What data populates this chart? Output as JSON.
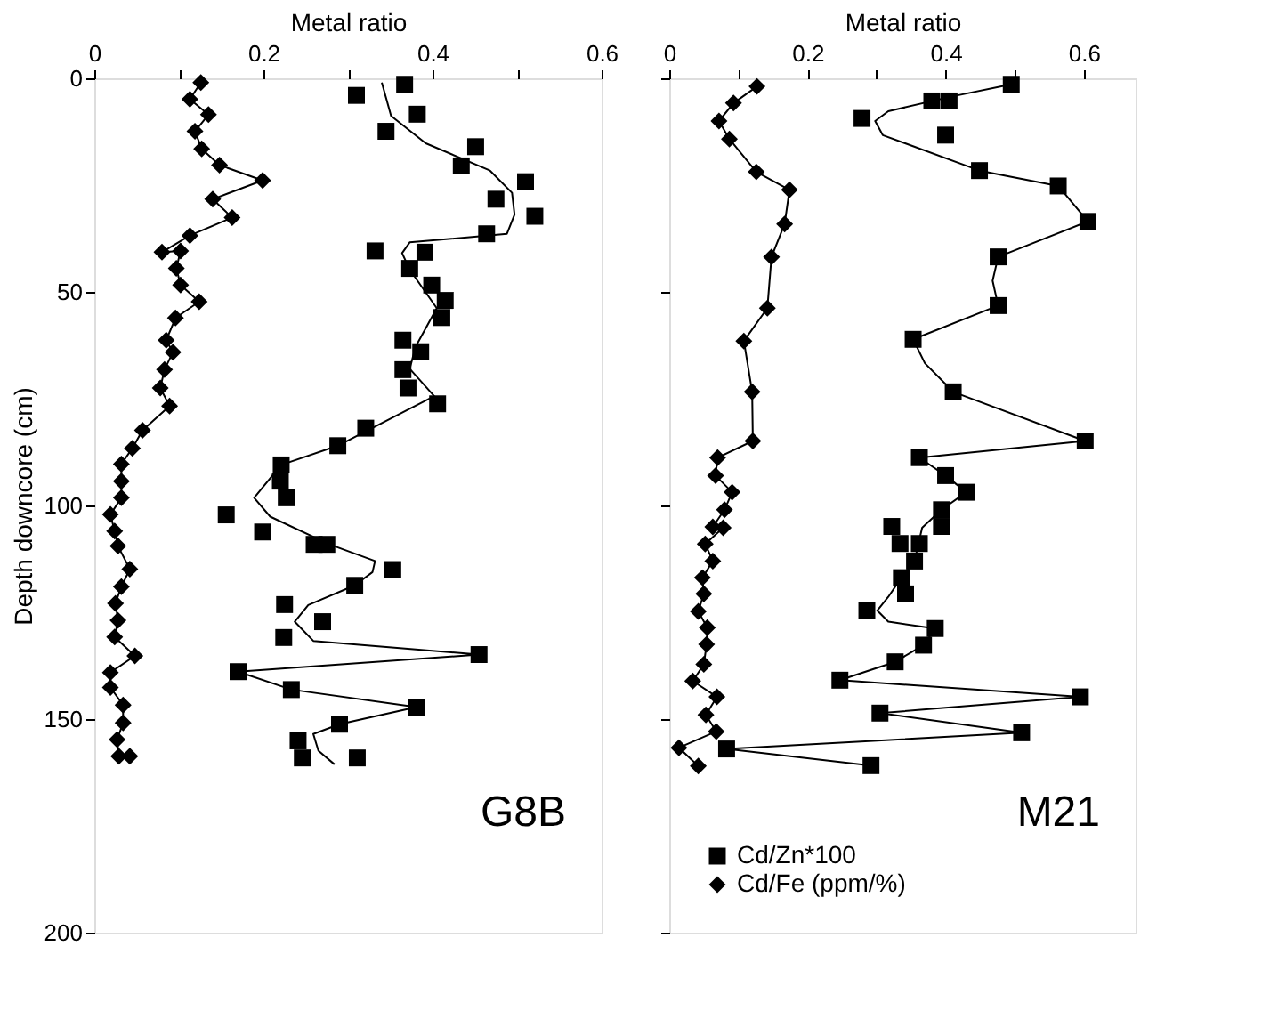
{
  "chart_data": [
    {
      "type": "scatter",
      "xlabel": "Metal ratio",
      "ylabel": "Depth downcore (cm)",
      "xlim": [
        0,
        0.6
      ],
      "xticks": [
        0,
        {
          "value": 0.1,
          "label": null
        },
        0.2,
        {
          "value": 0.3,
          "label": null
        },
        0.4,
        {
          "value": 0.5,
          "label": null
        },
        0.6
      ],
      "ylim": [
        200,
        0
      ],
      "yticks": [
        0,
        50,
        100,
        150,
        200
      ],
      "orientation": "horizontal",
      "grid": false,
      "legend": false,
      "annotations": [
        "G8B"
      ],
      "series": [
        {
          "color": "#000000",
          "type": "scatter",
          "marker": "square",
          "values": [
            0.367,
            0.31,
            0.382,
            0.345,
            0.451,
            0.434,
            0.51,
            0.475,
            0.521,
            0.464,
            0.332,
            0.391,
            0.373,
            0.399,
            0.415,
            0.411,
            0.365,
            0.386,
            0.365,
            0.371,
            0.406,
            0.321,
            0.288,
            0.221,
            0.22,
            0.227,
            0.156,
            0.199,
            0.26,
            0.275,
            0.353,
            0.308,
            0.225,
            0.27,
            0.224,
            0.455,
            0.17,
            0.233,
            0.381,
            0.29,
            0.241,
            0.246,
            0.311
          ],
          "x": [
            1.4,
            4,
            8.4,
            12.4,
            16,
            20.5,
            24.2,
            28.3,
            32.3,
            36.4,
            40.4,
            40.7,
            44.5,
            48.4,
            52,
            56,
            61.3,
            64,
            68.2,
            72.5,
            76.2,
            81.9,
            86,
            90.5,
            94.3,
            98.2,
            102.2,
            106.2,
            109.1,
            109.1,
            115,
            118.7,
            123.2,
            127.2,
            130.9,
            134.9,
            138.9,
            143.1,
            147.2,
            151.2,
            155.1,
            159.1,
            159.1
          ]
        },
        {
          "color": "#000000",
          "type": "line",
          "marker": "none",
          "values": [
            0.34,
            0.351,
            0.392,
            0.468,
            0.494,
            0.497,
            0.488,
            0.373,
            0.364,
            0.373,
            0.405,
            0.38,
            0.373,
            0.402,
            0.288,
            0.221,
            0.189,
            0.208,
            0.278,
            0.332,
            0.329,
            0.308,
            0.253,
            0.237,
            0.259,
            0.455,
            0.17,
            0.233,
            0.381,
            0.29,
            0.259,
            0.265,
            0.284
          ],
          "x": [
            1,
            8.8,
            15.2,
            21.6,
            26.8,
            31.9,
            36.4,
            38.4,
            40.9,
            44.8,
            53.8,
            62.8,
            68,
            74.4,
            86,
            90.5,
            98.2,
            102.6,
            109.1,
            113,
            115.6,
            118.7,
            123.3,
            127.2,
            131.7,
            134.9,
            138.9,
            143.1,
            147.2,
            151.2,
            153.5,
            157.4,
            160.6
          ]
        },
        {
          "color": "#000000",
          "type": "line",
          "marker": "diamond",
          "values": [
            0.126,
            0.113,
            0.135,
            0.119,
            0.127,
            0.148,
            0.199,
            0.14,
            0.163,
            0.113,
            0.08,
            0.102,
            0.097,
            0.102,
            0.124,
            0.096,
            0.085,
            0.093,
            0.083,
            0.078,
            0.089,
            0.057,
            0.045,
            0.032,
            0.032,
            0.032,
            0.019,
            0.024,
            0.028,
            0.042,
            0.032,
            0.025,
            0.028,
            0.024,
            0.048,
            0.019,
            0.019,
            0.034,
            0.034,
            0.027,
            0.029,
            0.042
          ],
          "x": [
            1,
            4.9,
            8.5,
            12.4,
            16.5,
            20.3,
            23.9,
            28.3,
            32.6,
            36.8,
            40.7,
            40.4,
            44.5,
            48.4,
            52.3,
            56.1,
            61.3,
            64.1,
            68.2,
            72.5,
            76.7,
            82.4,
            86.6,
            90.3,
            94.3,
            98.2,
            102.1,
            106,
            109.5,
            114.9,
            119,
            122.9,
            126.9,
            130.8,
            135.2,
            139.1,
            142.6,
            146.7,
            150.9,
            154.8,
            158.7,
            158.7
          ]
        }
      ]
    },
    {
      "type": "scatter",
      "xlabel": "Metal ratio",
      "xlim": [
        0,
        0.675
      ],
      "xticks": [
        0,
        {
          "value": 0.1,
          "label": null
        },
        0.2,
        {
          "value": 0.3,
          "label": null
        },
        0.4,
        {
          "value": 0.5,
          "label": null
        },
        0.6
      ],
      "ylim": [
        200,
        0
      ],
      "yticks": [
        0,
        50,
        100,
        150,
        200
      ],
      "orientation": "horizontal",
      "tick_labels": "x",
      "grid": false,
      "legend": "bottom left",
      "annotations": [
        "M21"
      ],
      "series": [
        {
          "name": "Cd/Zn*100",
          "color": "#000000",
          "type": "scatter",
          "marker": "square",
          "values": [
            0.495,
            0.38,
            0.405,
            0.279,
            0.4,
            0.449,
            0.563,
            0.606,
            0.476,
            0.476,
            0.353,
            0.411,
            0.602,
            0.362,
            0.4,
            0.43,
            0.394,
            0.322,
            0.394,
            0.334,
            0.362,
            0.355,
            0.336,
            0.342,
            0.286,
            0.385,
            0.368,
            0.327,
            0.247,
            0.595,
            0.305,
            0.51,
            0.083,
            0.292
          ],
          "x": [
            1.4,
            5.3,
            5.3,
            9.4,
            13.3,
            21.6,
            25.2,
            33.5,
            41.8,
            53.2,
            61.1,
            73.4,
            84.9,
            88.8,
            93,
            96.9,
            101,
            104.9,
            104.9,
            108.9,
            108.9,
            113,
            116.9,
            120.7,
            124.6,
            128.8,
            132.7,
            136.6,
            140.9,
            144.8,
            148.6,
            153.2,
            157,
            160.9
          ]
        },
        {
          "color": "#000000",
          "type": "line",
          "marker": "none",
          "values": [
            0.495,
            0.408,
            0.317,
            0.298,
            0.309,
            0.449,
            0.563,
            0.606,
            0.476,
            0.468,
            0.476,
            0.353,
            0.37,
            0.411,
            0.602,
            0.362,
            0.4,
            0.43,
            0.394,
            0.366,
            0.355,
            0.336,
            0.317,
            0.301,
            0.317,
            0.385,
            0.368,
            0.327,
            0.247,
            0.595,
            0.305,
            0.51,
            0.083,
            0.292
          ],
          "x": [
            1.4,
            4.3,
            7.7,
            10,
            13.3,
            21.6,
            25.2,
            33.5,
            41.8,
            47.4,
            53.2,
            61.1,
            66.7,
            73.4,
            84.9,
            88.8,
            93,
            96.9,
            101,
            105.2,
            113,
            116.9,
            121.4,
            124.6,
            127.2,
            128.8,
            132.7,
            136.6,
            140.9,
            144.8,
            148.6,
            153.2,
            157,
            160.9
          ]
        },
        {
          "name": "Cd/Fe (ppm/%)",
          "color": "#000000",
          "type": "line",
          "marker": "diamond",
          "values": [
            0.127,
            0.093,
            0.072,
            0.087,
            0.126,
            0.174,
            0.167,
            0.148,
            0.142,
            0.108,
            0.12,
            0.121,
            0.07,
            0.067,
            0.091,
            0.08,
            0.063,
            0.078,
            0.052,
            0.063,
            0.048,
            0.05,
            0.042,
            0.055,
            0.054,
            0.05,
            0.034,
            0.069,
            0.053,
            0.068,
            0.014,
            0.042
          ],
          "x": [
            1.9,
            5.8,
            10,
            14.2,
            21.9,
            26.1,
            34.1,
            41.8,
            53.8,
            61.5,
            73.4,
            84.9,
            88.8,
            93,
            96.9,
            101,
            105,
            105.2,
            109,
            113,
            116.9,
            120.7,
            124.8,
            128.6,
            132.5,
            137.2,
            141.1,
            144.8,
            149,
            152.9,
            156.7,
            161
          ]
        }
      ]
    }
  ]
}
